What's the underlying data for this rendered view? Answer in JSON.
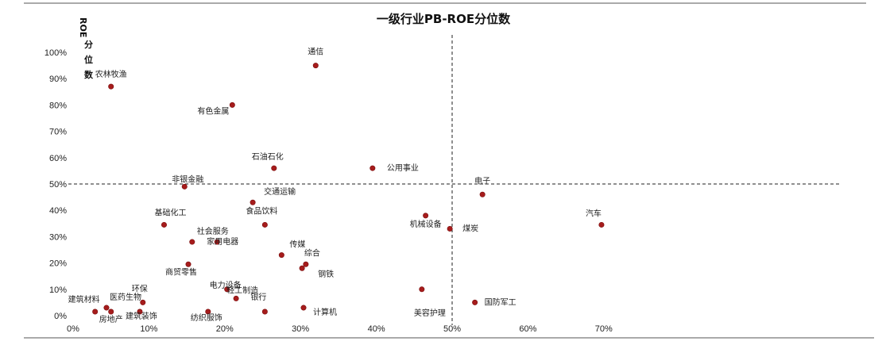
{
  "chart_data": {
    "type": "scatter",
    "title": "一级行业PB-ROE分位数",
    "ylabel": "ROE分位数",
    "xlabel": "",
    "xlim": [
      0,
      1
    ],
    "ylim": [
      0,
      1
    ],
    "x_ticks": [
      "0%",
      "10%",
      "20%",
      "30%",
      "40%",
      "50%",
      "60%",
      "70%"
    ],
    "y_ticks": [
      "0%",
      "10%",
      "20%",
      "30%",
      "40%",
      "50%",
      "60%",
      "70%",
      "80%",
      "90%",
      "100%"
    ],
    "reference_lines": {
      "x": 0.5,
      "y": 0.5
    },
    "grid": false,
    "point_color": "#a61c1c",
    "points": [
      {
        "label": "通信",
        "x": 0.32,
        "y": 0.95
      },
      {
        "label": "农林牧渔",
        "x": 0.05,
        "y": 0.87
      },
      {
        "label": "有色金属",
        "x": 0.21,
        "y": 0.8
      },
      {
        "label": "石油石化",
        "x": 0.265,
        "y": 0.56
      },
      {
        "label": "公用事业",
        "x": 0.395,
        "y": 0.56
      },
      {
        "label": "非银金融",
        "x": 0.147,
        "y": 0.49
      },
      {
        "label": "电子",
        "x": 0.54,
        "y": 0.46
      },
      {
        "label": "交通运输",
        "x": 0.237,
        "y": 0.43
      },
      {
        "label": "机械设备",
        "x": 0.465,
        "y": 0.38
      },
      {
        "label": "食品饮料",
        "x": 0.253,
        "y": 0.345
      },
      {
        "label": "基础化工",
        "x": 0.12,
        "y": 0.345
      },
      {
        "label": "汽车",
        "x": 0.697,
        "y": 0.345
      },
      {
        "label": "煤炭",
        "x": 0.497,
        "y": 0.33
      },
      {
        "label": "社会服务",
        "x": 0.157,
        "y": 0.28
      },
      {
        "label": "家用电器",
        "x": 0.19,
        "y": 0.28
      },
      {
        "label": "传媒",
        "x": 0.275,
        "y": 0.23
      },
      {
        "label": "综合",
        "x": 0.307,
        "y": 0.195
      },
      {
        "label": "商贸零售",
        "x": 0.152,
        "y": 0.195
      },
      {
        "label": "钢铁",
        "x": 0.302,
        "y": 0.18
      },
      {
        "label": "美容护理",
        "x": 0.46,
        "y": 0.1
      },
      {
        "label": "电力设备",
        "x": 0.203,
        "y": 0.1
      },
      {
        "label": "轻工制造",
        "x": 0.215,
        "y": 0.065
      },
      {
        "label": "环保",
        "x": 0.092,
        "y": 0.05
      },
      {
        "label": "国防军工",
        "x": 0.53,
        "y": 0.05
      },
      {
        "label": "建筑材料",
        "x": 0.029,
        "y": 0.015
      },
      {
        "label": "医药生物",
        "x": 0.044,
        "y": 0.03
      },
      {
        "label": "房地产",
        "x": 0.05,
        "y": 0.015
      },
      {
        "label": "建筑装饰",
        "x": 0.088,
        "y": 0.015
      },
      {
        "label": "纺织服饰",
        "x": 0.178,
        "y": 0.015
      },
      {
        "label": "银行",
        "x": 0.253,
        "y": 0.015
      },
      {
        "label": "计算机",
        "x": 0.304,
        "y": 0.03
      }
    ]
  }
}
